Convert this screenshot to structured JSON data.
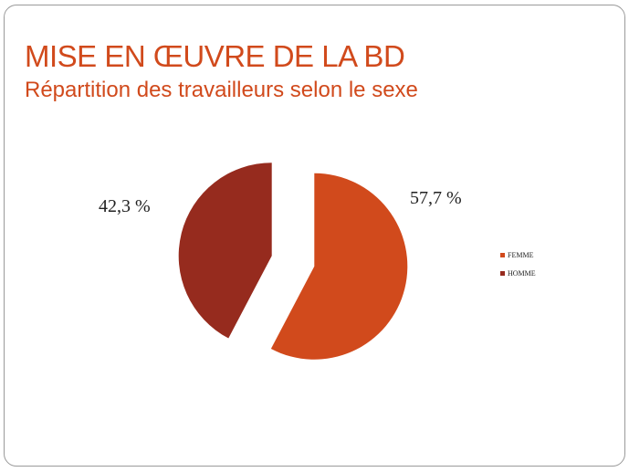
{
  "slide": {
    "title": "MISE EN ŒUVRE DE LA BD",
    "subtitle": "Répartition des travailleurs selon le sexe"
  },
  "chart_data": {
    "type": "pie",
    "categories": [
      "FEMME",
      "HOMME"
    ],
    "values": [
      57.7,
      42.3
    ],
    "data_labels": [
      "57,7 %",
      "42,3 %"
    ],
    "colors": [
      "#d14a1c",
      "#962b1e"
    ],
    "exploded": true,
    "legend_position": "right"
  }
}
